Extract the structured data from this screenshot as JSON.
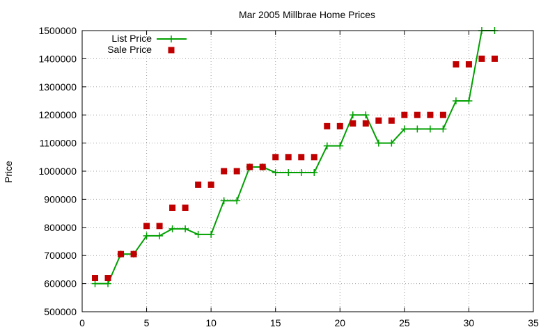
{
  "chart_data": {
    "type": "line",
    "title": "Mar 2005 Millbrae Home Prices",
    "xlabel": "",
    "ylabel": "Price",
    "xlim": [
      0,
      35
    ],
    "ylim": [
      500000,
      1500000
    ],
    "xticks": [
      0,
      5,
      10,
      15,
      20,
      25,
      30,
      35
    ],
    "yticks": [
      500000,
      600000,
      700000,
      800000,
      900000,
      1000000,
      1100000,
      1200000,
      1300000,
      1400000,
      1500000
    ],
    "grid": true,
    "legend_position": "top-left",
    "series": [
      {
        "name": "List Price",
        "style": "linespoints",
        "marker": "plus",
        "color": "#00a000",
        "x": [
          1,
          2,
          3,
          4,
          5,
          6,
          7,
          8,
          9,
          10,
          11,
          12,
          13,
          14,
          15,
          16,
          17,
          18,
          19,
          20,
          21,
          22,
          23,
          24,
          25,
          26,
          27,
          28,
          29,
          30,
          31,
          32
        ],
        "values": [
          600000,
          600000,
          705000,
          705000,
          770000,
          770000,
          795000,
          795000,
          775000,
          775000,
          895000,
          895000,
          1015000,
          1015000,
          995000,
          995000,
          995000,
          995000,
          1090000,
          1090000,
          1200000,
          1200000,
          1100000,
          1100000,
          1150000,
          1150000,
          1150000,
          1150000,
          1250000,
          1250000,
          1500000,
          1500000
        ]
      },
      {
        "name": "Sale Price",
        "style": "points",
        "marker": "square",
        "color": "#c00000",
        "x": [
          1,
          2,
          3,
          4,
          5,
          6,
          7,
          8,
          9,
          10,
          11,
          12,
          13,
          14,
          15,
          16,
          17,
          18,
          19,
          20,
          21,
          22,
          23,
          24,
          25,
          26,
          27,
          28,
          29,
          30,
          31,
          32
        ],
        "values": [
          620000,
          620000,
          705000,
          705000,
          805000,
          805000,
          870000,
          870000,
          952000,
          952000,
          1000000,
          1000000,
          1015000,
          1015000,
          1050000,
          1050000,
          1050000,
          1050000,
          1160000,
          1160000,
          1170000,
          1170000,
          1180000,
          1180000,
          1200000,
          1200000,
          1200000,
          1200000,
          1380000,
          1380000,
          1400000,
          1400000
        ]
      }
    ]
  }
}
